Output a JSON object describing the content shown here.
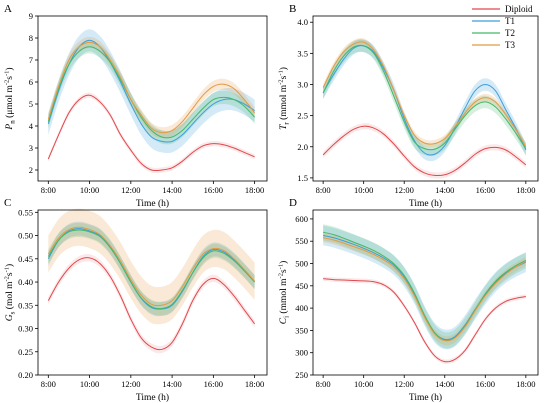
{
  "colors": {
    "Diploid": "#e0484e",
    "T1": "#3c9fdc",
    "T2": "#43b868",
    "T3": "#e29a45"
  },
  "legend": {
    "placement": "top-right",
    "entries": [
      "Diploid",
      "T1",
      "T2",
      "T3"
    ]
  },
  "chart_data": [
    {
      "type": "line",
      "panel": "A",
      "xlabel": "Time (h)",
      "ylabel": [
        "P",
        "n",
        " (μmol m",
        "-2",
        "s",
        "-1",
        ")"
      ],
      "x_ticks": [
        "8:00",
        "10:00",
        "12:00",
        "14:00",
        "16:00",
        "18:00"
      ],
      "y_ticks": [
        2,
        3,
        4,
        5,
        6,
        7,
        8,
        9
      ],
      "ylim": [
        1.5,
        9
      ],
      "x": [
        8,
        8.5,
        9,
        9.5,
        10,
        10.5,
        11,
        11.5,
        12,
        12.5,
        13,
        13.5,
        14,
        14.5,
        15,
        15.5,
        16,
        16.5,
        17,
        17.5,
        18
      ],
      "series": [
        {
          "name": "Diploid",
          "values": [
            2.5,
            3.6,
            4.6,
            5.2,
            5.4,
            5.1,
            4.5,
            3.6,
            2.9,
            2.3,
            2.0,
            2.0,
            2.1,
            2.4,
            2.8,
            3.1,
            3.2,
            3.15,
            3.0,
            2.8,
            2.6
          ],
          "band": 0.12
        },
        {
          "name": "T1",
          "values": [
            4.1,
            5.6,
            6.8,
            7.6,
            7.9,
            7.6,
            6.9,
            6.0,
            5.0,
            4.1,
            3.5,
            3.3,
            3.3,
            3.6,
            4.1,
            4.6,
            5.0,
            5.2,
            5.2,
            5.0,
            4.7
          ],
          "band": 0.5
        },
        {
          "name": "T2",
          "values": [
            4.2,
            5.7,
            6.8,
            7.4,
            7.6,
            7.4,
            6.9,
            6.1,
            5.2,
            4.4,
            3.8,
            3.5,
            3.5,
            3.8,
            4.3,
            4.8,
            5.2,
            5.3,
            5.2,
            4.9,
            4.4
          ],
          "band": 0.3
        },
        {
          "name": "T3",
          "values": [
            4.3,
            5.8,
            7.0,
            7.6,
            7.8,
            7.6,
            7.0,
            6.2,
            5.2,
            4.5,
            3.9,
            3.7,
            3.8,
            4.2,
            4.8,
            5.4,
            5.8,
            5.9,
            5.7,
            5.2,
            4.6
          ],
          "band": 0.25
        }
      ]
    },
    {
      "type": "line",
      "panel": "B",
      "xlabel": "Time (h)",
      "ylabel": [
        "T",
        "r",
        " (mmol m",
        "-2",
        "s",
        "-1",
        ")"
      ],
      "x_ticks": [
        "8:00",
        "10:00",
        "12:00",
        "14:00",
        "16:00",
        "18:00"
      ],
      "y_ticks": [
        1.5,
        2.0,
        2.5,
        3.0,
        3.5,
        4.0
      ],
      "y_tick_labels": [
        "1.5",
        "2.0",
        "2.5",
        "3.0",
        "3.5",
        "4.0"
      ],
      "ylim": [
        1.45,
        4.1
      ],
      "x": [
        8,
        8.5,
        9,
        9.5,
        10,
        10.5,
        11,
        11.5,
        12,
        12.5,
        13,
        13.5,
        14,
        14.5,
        15,
        15.5,
        16,
        16.5,
        17,
        17.5,
        18
      ],
      "series": [
        {
          "name": "Diploid",
          "values": [
            1.87,
            2.03,
            2.17,
            2.28,
            2.33,
            2.3,
            2.2,
            2.04,
            1.85,
            1.68,
            1.58,
            1.54,
            1.55,
            1.62,
            1.74,
            1.88,
            1.97,
            1.99,
            1.95,
            1.84,
            1.71
          ],
          "band": 0.05
        },
        {
          "name": "T1",
          "values": [
            2.87,
            3.15,
            3.4,
            3.58,
            3.62,
            3.52,
            3.25,
            2.9,
            2.45,
            2.1,
            1.9,
            1.88,
            2.02,
            2.3,
            2.62,
            2.9,
            3.0,
            2.9,
            2.6,
            2.3,
            1.95
          ],
          "band": 0.1
        },
        {
          "name": "T2",
          "values": [
            2.86,
            3.2,
            3.45,
            3.6,
            3.62,
            3.5,
            3.2,
            2.8,
            2.4,
            2.08,
            1.97,
            1.96,
            2.06,
            2.28,
            2.5,
            2.66,
            2.72,
            2.64,
            2.45,
            2.22,
            1.97
          ],
          "band": 0.1
        },
        {
          "name": "T3",
          "values": [
            2.95,
            3.28,
            3.52,
            3.65,
            3.68,
            3.55,
            3.28,
            2.9,
            2.5,
            2.19,
            2.06,
            2.05,
            2.13,
            2.32,
            2.54,
            2.72,
            2.79,
            2.72,
            2.52,
            2.28,
            2.0
          ],
          "band": 0.06
        }
      ]
    },
    {
      "type": "line",
      "panel": "C",
      "xlabel": "Time (h)",
      "ylabel": [
        "G",
        "s",
        " (mol m",
        "-2",
        "s",
        "-1",
        ")"
      ],
      "x_ticks": [
        "8:00",
        "10:00",
        "12:00",
        "14:00",
        "16:00",
        "18:00"
      ],
      "y_ticks": [
        0.2,
        0.25,
        0.3,
        0.35,
        0.4,
        0.45,
        0.5,
        0.55
      ],
      "y_tick_labels": [
        "0.20",
        "0.25",
        "0.30",
        "0.35",
        "0.40",
        "0.45",
        "0.50",
        "0.55"
      ],
      "ylim": [
        0.2,
        0.555
      ],
      "x": [
        8,
        8.5,
        9,
        9.5,
        10,
        10.5,
        11,
        11.5,
        12,
        12.5,
        13,
        13.5,
        14,
        14.5,
        15,
        15.5,
        16,
        16.5,
        17,
        17.5,
        18
      ],
      "series": [
        {
          "name": "Diploid",
          "values": [
            0.36,
            0.4,
            0.43,
            0.448,
            0.452,
            0.44,
            0.412,
            0.37,
            0.32,
            0.28,
            0.26,
            0.255,
            0.27,
            0.31,
            0.36,
            0.395,
            0.408,
            0.395,
            0.37,
            0.34,
            0.31
          ],
          "band": 0.008
        },
        {
          "name": "T1",
          "values": [
            0.45,
            0.49,
            0.51,
            0.515,
            0.51,
            0.5,
            0.476,
            0.44,
            0.4,
            0.365,
            0.345,
            0.342,
            0.35,
            0.38,
            0.42,
            0.455,
            0.47,
            0.465,
            0.448,
            0.425,
            0.4
          ],
          "band": 0.015
        },
        {
          "name": "T2",
          "values": [
            0.455,
            0.49,
            0.508,
            0.512,
            0.508,
            0.498,
            0.474,
            0.44,
            0.4,
            0.366,
            0.347,
            0.343,
            0.352,
            0.382,
            0.42,
            0.452,
            0.467,
            0.462,
            0.446,
            0.424,
            0.4
          ],
          "band": 0.015
        },
        {
          "name": "T3",
          "values": [
            0.46,
            0.495,
            0.513,
            0.518,
            0.513,
            0.502,
            0.478,
            0.445,
            0.405,
            0.372,
            0.352,
            0.35,
            0.36,
            0.39,
            0.428,
            0.46,
            0.472,
            0.468,
            0.45,
            0.427,
            0.402
          ],
          "band": 0.04
        }
      ]
    },
    {
      "type": "line",
      "panel": "D",
      "xlabel": "Time (h)",
      "ylabel": [
        "C",
        "i",
        " (mmol m",
        "-2",
        "s",
        "-1",
        ")"
      ],
      "x_ticks": [
        "8:00",
        "10:00",
        "12:00",
        "14:00",
        "16:00",
        "18:00"
      ],
      "y_ticks": [
        250,
        300,
        350,
        400,
        450,
        500,
        550,
        600
      ],
      "ylim": [
        250,
        620
      ],
      "x": [
        8,
        8.5,
        9,
        9.5,
        10,
        10.5,
        11,
        11.5,
        12,
        12.5,
        13,
        13.5,
        14,
        14.5,
        15,
        15.5,
        16,
        16.5,
        17,
        17.5,
        18
      ],
      "series": [
        {
          "name": "Diploid",
          "values": [
            466,
            464,
            463,
            462,
            461,
            459,
            452,
            435,
            405,
            368,
            325,
            293,
            280,
            285,
            305,
            340,
            375,
            400,
            415,
            422,
            426
          ],
          "band": 5
        },
        {
          "name": "T1",
          "values": [
            563,
            558,
            551,
            543,
            534,
            524,
            512,
            496,
            470,
            432,
            383,
            345,
            330,
            336,
            362,
            397,
            430,
            458,
            478,
            492,
            503
          ],
          "band": 22
        },
        {
          "name": "T2",
          "values": [
            570,
            565,
            557,
            548,
            539,
            529,
            516,
            499,
            473,
            434,
            384,
            345,
            328,
            334,
            360,
            396,
            432,
            460,
            480,
            495,
            507
          ],
          "band": 18
        },
        {
          "name": "T3",
          "values": [
            558,
            553,
            546,
            538,
            530,
            520,
            508,
            492,
            466,
            428,
            380,
            342,
            327,
            333,
            358,
            394,
            428,
            455,
            476,
            492,
            505
          ],
          "band": 10
        }
      ]
    }
  ]
}
